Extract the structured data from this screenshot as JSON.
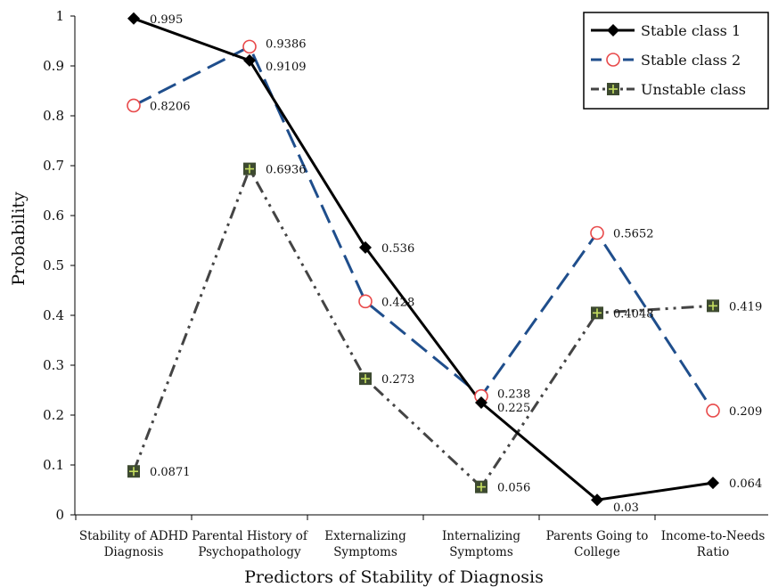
{
  "chart_data": {
    "type": "line",
    "title": "",
    "xlabel": "Predictors of Stability of Diagnosis",
    "ylabel": "Probability",
    "ylim": [
      0,
      1
    ],
    "yticks": [
      "0",
      "0.1",
      "0.2",
      "0.3",
      "0.4",
      "0.5",
      "0.6",
      "0.7",
      "0.8",
      "0.9",
      "1"
    ],
    "categories": [
      [
        "Stability of ADHD",
        "Diagnosis"
      ],
      [
        "Parental History of",
        "Psychopathology"
      ],
      [
        "Externalizing",
        "Symptoms"
      ],
      [
        "Internalizing",
        "Symptoms"
      ],
      [
        "Parents Going to",
        "College"
      ],
      [
        "Income-to-Needs",
        "Ratio"
      ]
    ],
    "legend_position": "top-right",
    "grid": false,
    "series": [
      {
        "name": "Stable class 1",
        "values": [
          0.995,
          0.9109,
          0.536,
          0.225,
          0.03,
          0.064
        ],
        "labels": [
          "0.995",
          "0.9109",
          "0.536",
          "0.225",
          "0.03",
          "0.064"
        ],
        "color": "#000000",
        "line_style": "solid",
        "marker": "diamond"
      },
      {
        "name": "Stable class 2",
        "values": [
          0.8206,
          0.9386,
          0.428,
          0.238,
          0.5652,
          0.209
        ],
        "labels": [
          "0.8206",
          "0.9386",
          "0.428",
          "0.238",
          "0.5652",
          "0.209"
        ],
        "color": "#1f4e8c",
        "marker_color": "#e8494a",
        "line_style": "dashed",
        "marker": "open-circle"
      },
      {
        "name": "Unstable class",
        "values": [
          0.0871,
          0.6936,
          0.273,
          0.056,
          0.4048,
          0.419
        ],
        "labels": [
          "0.0871",
          "0.6936",
          "0.273",
          "0.056",
          "0.4048",
          "0.419"
        ],
        "color": "#444444",
        "marker_color": "#3d4a30",
        "marker_cross_color": "#c7e060",
        "line_style": "dash-dot-dot",
        "marker": "square-plus"
      }
    ]
  }
}
